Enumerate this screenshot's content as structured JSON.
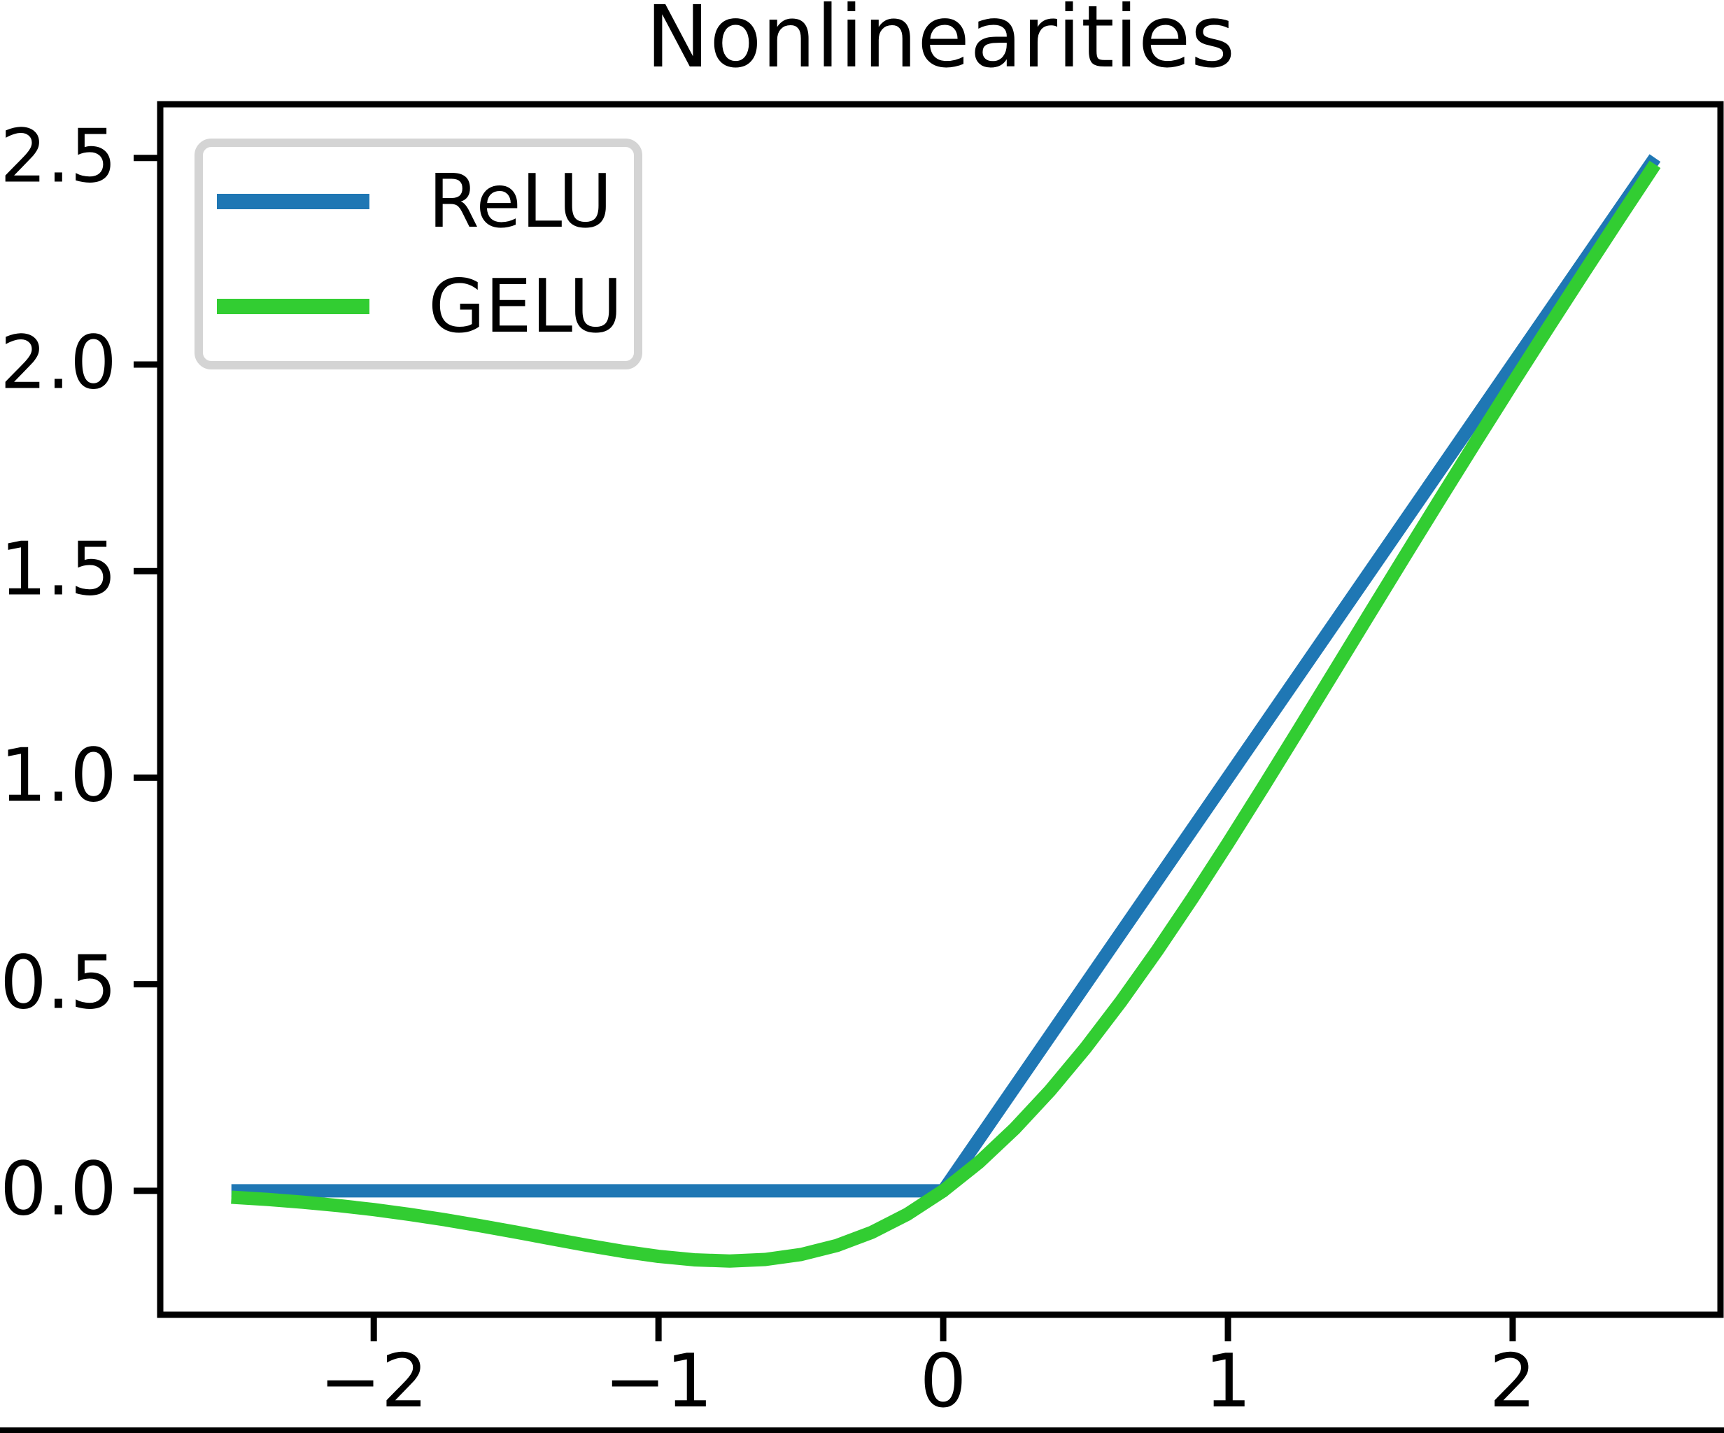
{
  "title": "Nonlinearities",
  "colors": {
    "relu_line": "#1f77b4",
    "gelu_line": "#32cd32",
    "frame": "#000000",
    "legend_border": "#d4d4d4",
    "background": "#ffffff"
  },
  "legend": {
    "position": "upper left",
    "items": [
      {
        "label": "ReLU",
        "color": "#1f77b4"
      },
      {
        "label": "GELU",
        "color": "#32cd32"
      }
    ]
  },
  "chart_data": {
    "type": "line",
    "title": "Nonlinearities",
    "xlabel": "",
    "ylabel": "",
    "grid": false,
    "legend_position": "upper left",
    "xlim": [
      -2.75,
      2.73
    ],
    "ylim": [
      -0.3,
      2.63
    ],
    "x_ticks": [
      -2,
      -1,
      0,
      1,
      2
    ],
    "x_tick_labels": [
      "−2",
      "−1",
      "0",
      "1",
      "2"
    ],
    "y_ticks": [
      0.0,
      0.5,
      1.0,
      1.5,
      2.0,
      2.5
    ],
    "y_tick_labels": [
      "0.0",
      "0.5",
      "1.0",
      "1.5",
      "2.0",
      "2.5"
    ],
    "series": [
      {
        "name": "ReLU",
        "color": "#1f77b4",
        "x": [
          -2.5,
          0,
          2.5
        ],
        "y": [
          0,
          0,
          2.5
        ]
      },
      {
        "name": "GELU",
        "color": "#32cd32",
        "x": [
          -2.5,
          -2.375,
          -2.25,
          -2.125,
          -2,
          -1.875,
          -1.75,
          -1.625,
          -1.5,
          -1.375,
          -1.25,
          -1.125,
          -1,
          -0.875,
          -0.75,
          -0.625,
          -0.5,
          -0.375,
          -0.25,
          -0.125,
          0,
          0.125,
          0.25,
          0.375,
          0.5,
          0.625,
          0.75,
          0.875,
          1,
          1.125,
          1.25,
          1.375,
          1.5,
          1.625,
          1.75,
          1.875,
          2,
          2.125,
          2.25,
          2.375,
          2.5
        ],
        "y": [
          -0.0155,
          -0.0208,
          -0.0275,
          -0.0357,
          -0.0455,
          -0.057,
          -0.0701,
          -0.0847,
          -0.1002,
          -0.1163,
          -0.1321,
          -0.1466,
          -0.1587,
          -0.167,
          -0.17,
          -0.1662,
          -0.1543,
          -0.1327,
          -0.1003,
          -0.0563,
          0,
          0.0687,
          0.1497,
          0.2423,
          0.3457,
          0.4588,
          0.58,
          0.708,
          0.8413,
          0.9784,
          1.1179,
          1.2587,
          1.3998,
          1.5403,
          1.6799,
          1.818,
          1.9545,
          2.0893,
          2.2225,
          2.3542,
          2.4845
        ]
      }
    ]
  }
}
